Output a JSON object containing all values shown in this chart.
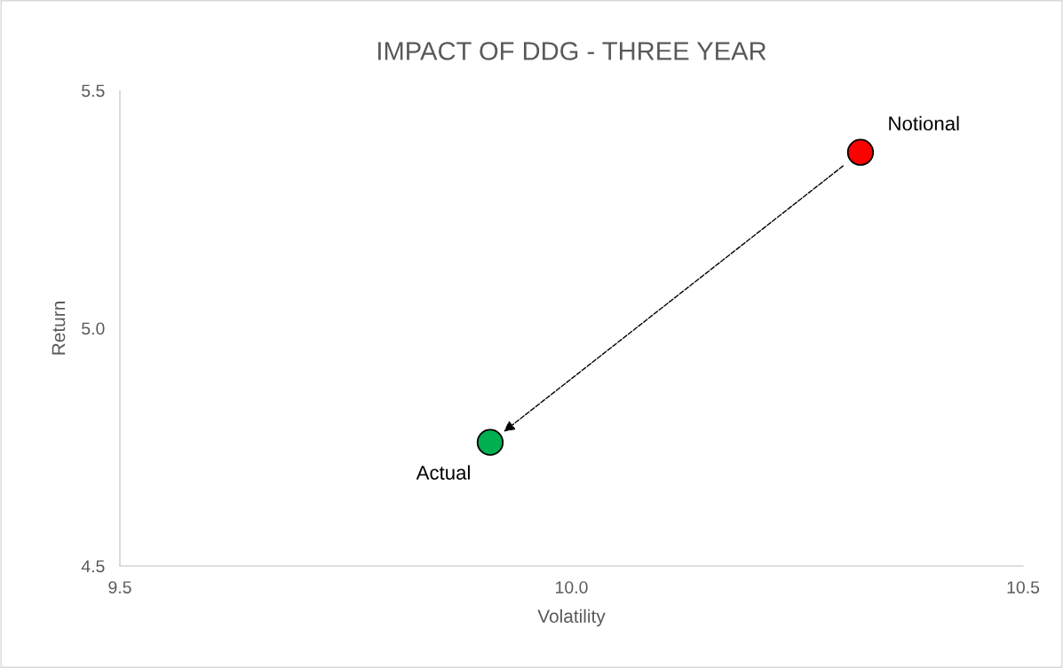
{
  "chart_data": {
    "type": "scatter",
    "title": "IMPACT OF DDG - THREE YEAR",
    "xlabel": "Volatility",
    "ylabel": "Return",
    "series": [
      {
        "name": "Notional",
        "color": "#ff0000",
        "x": [
          10.32
        ],
        "values": [
          5.37
        ]
      },
      {
        "name": "Actual",
        "color": "#00b050",
        "x": [
          9.91
        ],
        "values": [
          4.76
        ]
      }
    ],
    "xlim": [
      9.5,
      10.5
    ],
    "xticks": [
      {
        "value": 9.5,
        "label": "9.5"
      },
      {
        "value": 10.0,
        "label": "10.0"
      },
      {
        "value": 10.5,
        "label": "10.5"
      }
    ],
    "ylim": [
      4.5,
      5.5
    ],
    "yticks": [
      {
        "value": 4.5,
        "label": "4.5"
      },
      {
        "value": 5.0,
        "label": "5.0"
      },
      {
        "value": 5.5,
        "label": "5.5"
      }
    ],
    "marker": "circle",
    "grid": false,
    "legend": false
  }
}
